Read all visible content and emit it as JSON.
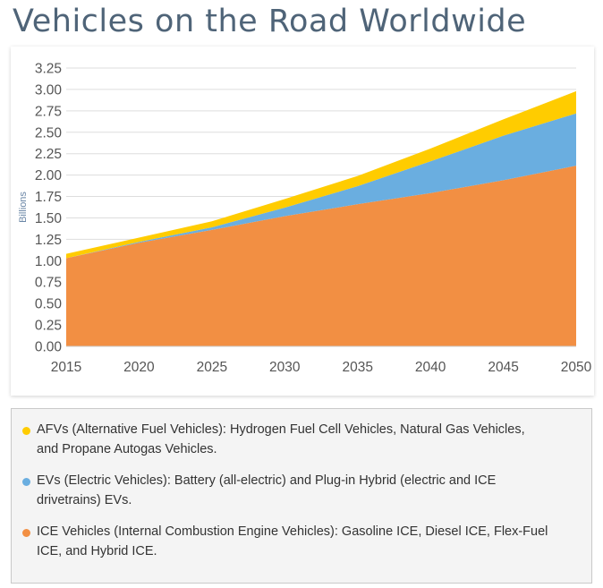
{
  "page": {
    "title": "Vehicles on the Road Worldwide"
  },
  "chart_data": {
    "type": "area",
    "stacked": true,
    "title": "Vehicles on the Road Worldwide",
    "xlabel": "",
    "ylabel": "Billions",
    "x": [
      2015,
      2020,
      2025,
      2030,
      2035,
      2040,
      2045,
      2050
    ],
    "xlim": [
      2015,
      2050
    ],
    "ylim": [
      0,
      3.25
    ],
    "yticks": [
      "0.00",
      "0.25",
      "0.50",
      "0.75",
      "1.00",
      "1.25",
      "1.50",
      "1.75",
      "2.00",
      "2.25",
      "2.50",
      "2.75",
      "3.00",
      "3.25"
    ],
    "xticks": [
      "2015",
      "2020",
      "2025",
      "2030",
      "2035",
      "2040",
      "2045",
      "2050"
    ],
    "grid": true,
    "series": [
      {
        "name": "ICE Vehicles",
        "color": "#f28f43",
        "values": [
          1.03,
          1.21,
          1.36,
          1.52,
          1.66,
          1.79,
          1.94,
          2.11
        ]
      },
      {
        "name": "EVs",
        "color": "#6aaee0",
        "values": [
          0.0,
          0.01,
          0.03,
          0.1,
          0.21,
          0.37,
          0.52,
          0.61
        ]
      },
      {
        "name": "AFVs",
        "color": "#ffcc00",
        "values": [
          0.05,
          0.05,
          0.07,
          0.1,
          0.12,
          0.15,
          0.19,
          0.26
        ]
      }
    ]
  },
  "legend": {
    "items": [
      {
        "color": "#ffcc00",
        "line1": "AFVs (Alternative Fuel Vehicles): Hydrogen Fuel Cell Vehicles, Natural Gas Vehicles,",
        "line2": "and Propane Autogas Vehicles."
      },
      {
        "color": "#6aaee0",
        "line1": "EVs (Electric Vehicles): Battery (all-electric) and Plug-in Hybrid (electric and ICE",
        "line2": "drivetrains) EVs."
      },
      {
        "color": "#f28f43",
        "line1": "ICE Vehicles (Internal Combustion Engine Vehicles): Gasoline ICE, Diesel ICE, Flex-Fuel",
        "line2": "ICE, and Hybrid ICE."
      }
    ]
  }
}
